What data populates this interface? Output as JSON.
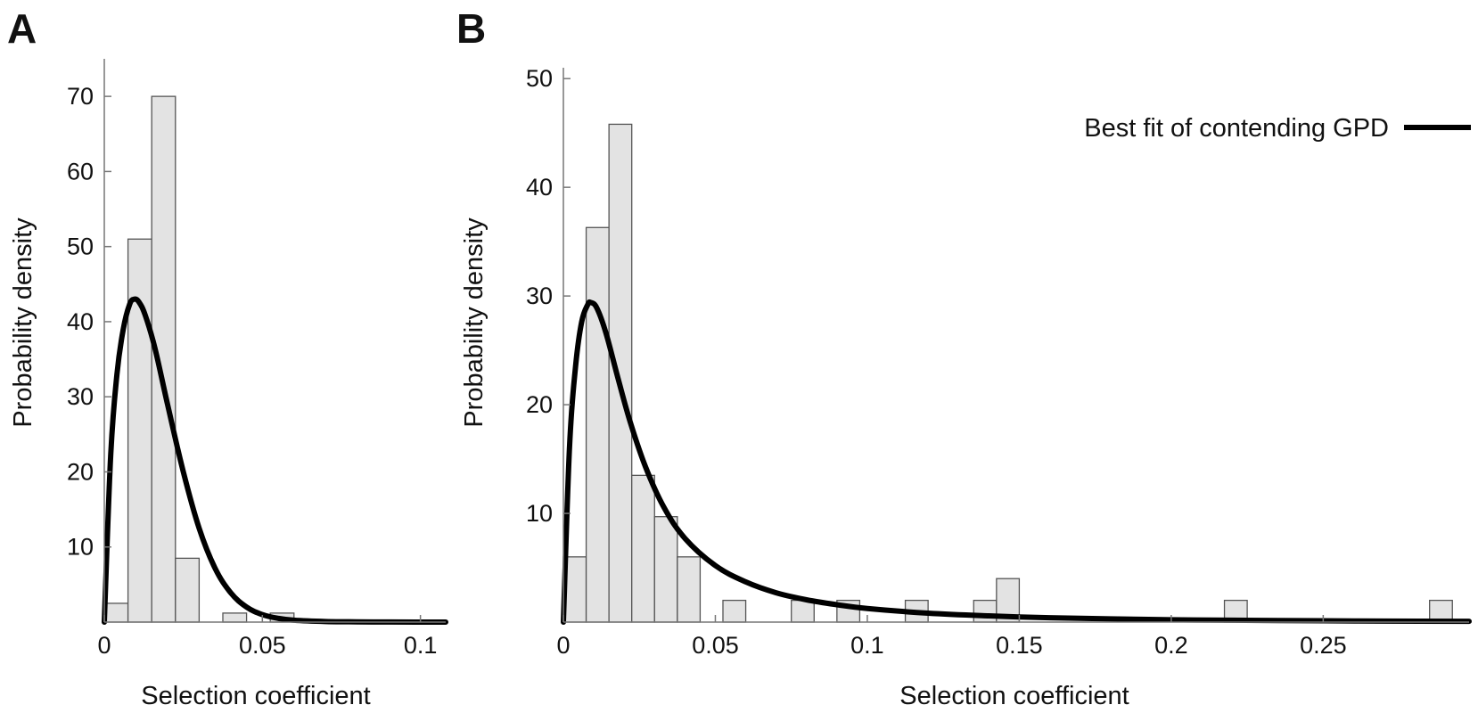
{
  "chart_data": [
    {
      "panel": "A",
      "type": "bar",
      "xlabel": "Selection coefficient",
      "ylabel": "Probability density",
      "xlim": [
        0,
        0.108
      ],
      "ylim": [
        0,
        75
      ],
      "x_ticks": [
        0,
        0.05,
        0.1
      ],
      "x_tick_labels": [
        "0",
        "0.05",
        "0.1"
      ],
      "y_ticks": [
        10,
        20,
        30,
        40,
        50,
        60,
        70
      ],
      "y_tick_labels": [
        "10",
        "20",
        "30",
        "40",
        "50",
        "60",
        "70"
      ],
      "bin_width": 0.0075,
      "histogram": [
        {
          "x0": 0.0,
          "value": 2.5
        },
        {
          "x0": 0.0075,
          "value": 51
        },
        {
          "x0": 0.015,
          "value": 70
        },
        {
          "x0": 0.0225,
          "value": 8.5
        },
        {
          "x0": 0.0375,
          "value": 1.2
        },
        {
          "x0": 0.0525,
          "value": 1.2
        }
      ],
      "curve": {
        "shape": "generalized pareto (fitted density)",
        "x_mode": 0.0095,
        "peak_density": 43,
        "points": [
          [
            0,
            0
          ],
          [
            0.002,
            22
          ],
          [
            0.004,
            33
          ],
          [
            0.006,
            39
          ],
          [
            0.008,
            42.3
          ],
          [
            0.0095,
            43
          ],
          [
            0.011,
            42.6
          ],
          [
            0.013,
            40.8
          ],
          [
            0.016,
            36.5
          ],
          [
            0.02,
            29
          ],
          [
            0.025,
            20
          ],
          [
            0.03,
            12.5
          ],
          [
            0.035,
            7.2
          ],
          [
            0.04,
            3.9
          ],
          [
            0.045,
            2
          ],
          [
            0.05,
            1
          ],
          [
            0.055,
            0.5
          ],
          [
            0.06,
            0.25
          ],
          [
            0.07,
            0.08
          ],
          [
            0.08,
            0.03
          ],
          [
            0.09,
            0.01
          ],
          [
            0.1,
            0.0
          ],
          [
            0.108,
            0.0
          ]
        ]
      },
      "grid": false,
      "legend": null
    },
    {
      "panel": "B",
      "type": "bar",
      "xlabel": "Selection coefficient",
      "ylabel": "Probability density",
      "xlim": [
        0,
        0.298
      ],
      "ylim": [
        0,
        51
      ],
      "x_ticks": [
        0,
        0.05,
        0.1,
        0.15,
        0.2,
        0.25
      ],
      "x_tick_labels": [
        "0",
        "0.05",
        "0.1",
        "0.15",
        "0.2",
        "0.25"
      ],
      "y_ticks": [
        10,
        20,
        30,
        40,
        50
      ],
      "y_tick_labels": [
        "10",
        "20",
        "30",
        "40",
        "50"
      ],
      "bin_width": 0.0075,
      "histogram": [
        {
          "x0": 0.0,
          "value": 6
        },
        {
          "x0": 0.0075,
          "value": 36.3
        },
        {
          "x0": 0.015,
          "value": 45.8
        },
        {
          "x0": 0.0225,
          "value": 13.5
        },
        {
          "x0": 0.03,
          "value": 9.7
        },
        {
          "x0": 0.0375,
          "value": 6
        },
        {
          "x0": 0.0525,
          "value": 2
        },
        {
          "x0": 0.075,
          "value": 2
        },
        {
          "x0": 0.09,
          "value": 2
        },
        {
          "x0": 0.1125,
          "value": 2
        },
        {
          "x0": 0.135,
          "value": 2
        },
        {
          "x0": 0.1425,
          "value": 4
        },
        {
          "x0": 0.2175,
          "value": 2
        },
        {
          "x0": 0.285,
          "value": 2
        }
      ],
      "curve": {
        "shape": "generalized pareto (fitted density)",
        "x_mode": 0.009,
        "peak_density": 29.4,
        "points": [
          [
            0,
            0
          ],
          [
            0.002,
            16
          ],
          [
            0.004,
            23.5
          ],
          [
            0.006,
            27.6
          ],
          [
            0.008,
            29.2
          ],
          [
            0.009,
            29.4
          ],
          [
            0.011,
            28.9
          ],
          [
            0.014,
            26.6
          ],
          [
            0.018,
            22.4
          ],
          [
            0.022,
            18.4
          ],
          [
            0.027,
            14.3
          ],
          [
            0.033,
            10.6
          ],
          [
            0.04,
            7.7
          ],
          [
            0.05,
            5.2
          ],
          [
            0.06,
            3.7
          ],
          [
            0.07,
            2.7
          ],
          [
            0.08,
            2.05
          ],
          [
            0.09,
            1.6
          ],
          [
            0.1,
            1.25
          ],
          [
            0.12,
            0.82
          ],
          [
            0.14,
            0.57
          ],
          [
            0.16,
            0.4
          ],
          [
            0.18,
            0.3
          ],
          [
            0.2,
            0.22
          ],
          [
            0.22,
            0.17
          ],
          [
            0.25,
            0.12
          ],
          [
            0.27,
            0.09
          ],
          [
            0.298,
            0.07
          ]
        ]
      },
      "grid": false,
      "legend": {
        "placement": "top-right",
        "entries": [
          {
            "label": "Best fit of contending GPD",
            "color": "#000000"
          }
        ]
      }
    }
  ],
  "panels": {
    "a_label": "A",
    "b_label": "B"
  },
  "colors": {
    "bar_fill": "#e3e3e3",
    "bar_stroke": "#555555",
    "curve": "#000000",
    "axis": "#777777"
  }
}
